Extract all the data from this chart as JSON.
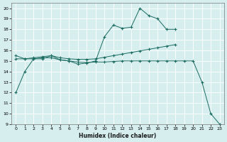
{
  "xlabel": "Humidex (Indice chaleur)",
  "bg_color": "#d7eeee",
  "grid_color": "#ffffff",
  "line_color": "#1a6b60",
  "xlim": [
    -0.5,
    23.5
  ],
  "ylim": [
    9,
    20.5
  ],
  "yticks": [
    9,
    10,
    11,
    12,
    13,
    14,
    15,
    16,
    17,
    18,
    19,
    20
  ],
  "xticks": [
    0,
    1,
    2,
    3,
    4,
    5,
    6,
    7,
    8,
    9,
    10,
    11,
    12,
    13,
    14,
    15,
    16,
    17,
    18,
    19,
    20,
    21,
    22,
    23
  ],
  "line1_x": [
    0,
    1,
    2,
    3,
    4,
    5,
    6,
    7,
    8,
    9,
    10,
    11,
    12,
    13,
    14,
    15,
    16,
    17,
    18
  ],
  "line1_y": [
    12.0,
    14.0,
    15.2,
    15.2,
    15.5,
    15.1,
    15.0,
    14.7,
    14.8,
    15.0,
    17.3,
    18.4,
    18.1,
    18.2,
    20.0,
    19.3,
    19.0,
    18.0,
    18.0
  ],
  "line2_x": [
    0,
    1,
    2,
    3,
    4,
    5,
    6,
    7,
    8,
    9,
    10,
    11,
    12,
    13,
    14,
    15,
    16,
    17,
    18
  ],
  "line2_y": [
    15.2,
    15.2,
    15.3,
    15.4,
    15.5,
    15.3,
    15.2,
    15.15,
    15.15,
    15.2,
    15.35,
    15.5,
    15.65,
    15.8,
    15.95,
    16.1,
    16.25,
    16.4,
    16.55
  ],
  "line3_x": [
    0,
    1,
    2,
    3,
    4,
    5,
    6,
    7,
    8,
    9,
    10,
    11,
    12,
    13,
    14,
    15,
    16,
    17,
    18,
    19,
    20,
    21,
    22,
    23
  ],
  "line3_y": [
    15.5,
    15.2,
    15.2,
    15.3,
    15.3,
    15.1,
    15.0,
    14.9,
    14.85,
    14.9,
    14.9,
    14.95,
    15.0,
    15.0,
    15.0,
    15.0,
    15.0,
    15.0,
    15.0,
    15.0,
    15.0,
    13.0,
    10.0,
    9.0
  ]
}
